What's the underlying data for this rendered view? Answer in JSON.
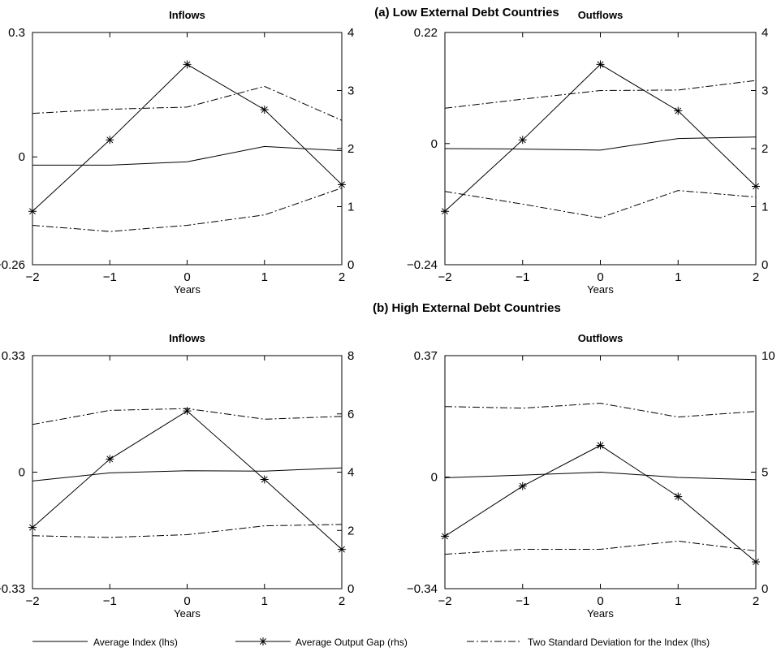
{
  "sections": [
    {
      "title": "(a) Low External Debt Countries"
    },
    {
      "title": "(b) High External Debt Countries"
    }
  ],
  "legend": [
    {
      "key": "index",
      "label": "Average Index (lhs)"
    },
    {
      "key": "gap",
      "label": "Average Output Gap (rhs)"
    },
    {
      "key": "sd",
      "label": "Two Standard Deviation for the Index (lhs)"
    }
  ],
  "chart_data": [
    {
      "type": "line",
      "title": "Inflows",
      "section": "(a) Low External Debt Countries",
      "xlabel": "Years",
      "x": [
        -2,
        -1,
        0,
        1,
        2
      ],
      "xticks": [
        "-2",
        "-1",
        "0",
        "1",
        "2"
      ],
      "xlim": [
        -2,
        2
      ],
      "ylim_left": [
        -0.26,
        0.3
      ],
      "yticks_left": [
        -0.26,
        0,
        0.3
      ],
      "yticklabels_left": [
        "-0.26",
        "0",
        "0.3"
      ],
      "ylim_right": [
        0,
        4
      ],
      "yticks_right": [
        0,
        1,
        2,
        3,
        4
      ],
      "yticklabels_right": [
        "0",
        "1",
        "2",
        "3",
        "4"
      ],
      "series": [
        {
          "key": "index",
          "axis": "left",
          "values": [
            -0.02,
            -0.02,
            -0.012,
            0.025,
            0.015
          ]
        },
        {
          "key": "sd_upper",
          "axis": "left",
          "values": [
            0.105,
            0.115,
            0.12,
            0.17,
            0.088
          ]
        },
        {
          "key": "sd_lower",
          "axis": "left",
          "values": [
            -0.165,
            -0.18,
            -0.165,
            -0.14,
            -0.075
          ]
        },
        {
          "key": "gap",
          "axis": "right",
          "values": [
            0.92,
            2.15,
            3.45,
            2.67,
            1.38
          ]
        }
      ]
    },
    {
      "type": "line",
      "title": "Outflows",
      "section": "(a) Low External Debt Countries",
      "xlabel": "Years",
      "x": [
        -2,
        -1,
        0,
        1,
        2
      ],
      "xticks": [
        "-2",
        "-1",
        "0",
        "1",
        "2"
      ],
      "xlim": [
        -2,
        2
      ],
      "ylim_left": [
        -0.24,
        0.22
      ],
      "yticks_left": [
        -0.24,
        0,
        0.22
      ],
      "yticklabels_left": [
        "-0.24",
        "0",
        "0.22"
      ],
      "ylim_right": [
        0,
        4
      ],
      "yticks_right": [
        0,
        1,
        2,
        3,
        4
      ],
      "yticklabels_right": [
        "0",
        "1",
        "2",
        "3",
        "4"
      ],
      "series": [
        {
          "key": "index",
          "axis": "left",
          "values": [
            -0.01,
            -0.011,
            -0.013,
            0.01,
            0.013
          ]
        },
        {
          "key": "sd_upper",
          "axis": "left",
          "values": [
            0.07,
            0.088,
            0.105,
            0.106,
            0.125
          ]
        },
        {
          "key": "sd_lower",
          "axis": "left",
          "values": [
            -0.095,
            -0.12,
            -0.147,
            -0.093,
            -0.106
          ]
        },
        {
          "key": "gap",
          "axis": "right",
          "values": [
            0.92,
            2.15,
            3.45,
            2.65,
            1.35
          ]
        }
      ]
    },
    {
      "type": "line",
      "title": "Inflows",
      "section": "(b) High External Debt Countries",
      "xlabel": "Years",
      "x": [
        -2,
        -1,
        0,
        1,
        2
      ],
      "xticks": [
        "-2",
        "-1",
        "0",
        "1",
        "2"
      ],
      "xlim": [
        -2,
        2
      ],
      "ylim_left": [
        -0.33,
        0.33
      ],
      "yticks_left": [
        -0.33,
        0,
        0.33
      ],
      "yticklabels_left": [
        "-0.33",
        "0",
        "0.33"
      ],
      "ylim_right": [
        0,
        8
      ],
      "yticks_right": [
        0,
        2,
        4,
        6,
        8
      ],
      "yticklabels_right": [
        "0",
        "2",
        "4",
        "6",
        "8"
      ],
      "series": [
        {
          "key": "index",
          "axis": "left",
          "values": [
            -0.025,
            -0.002,
            0.004,
            0.003,
            0.012
          ]
        },
        {
          "key": "sd_upper",
          "axis": "left",
          "values": [
            0.135,
            0.175,
            0.18,
            0.15,
            0.158
          ]
        },
        {
          "key": "sd_lower",
          "axis": "left",
          "values": [
            -0.18,
            -0.185,
            -0.177,
            -0.152,
            -0.148
          ]
        },
        {
          "key": "gap",
          "axis": "right",
          "values": [
            2.1,
            4.45,
            6.1,
            3.75,
            1.35
          ]
        }
      ]
    },
    {
      "type": "line",
      "title": "Outflows",
      "section": "(b) High External Debt Countries",
      "xlabel": "Years",
      "x": [
        -2,
        -1,
        0,
        1,
        2
      ],
      "xticks": [
        "-2",
        "-1",
        "0",
        "1",
        "2"
      ],
      "xlim": [
        -2,
        2
      ],
      "ylim_left": [
        -0.34,
        0.37
      ],
      "yticks_left": [
        -0.34,
        0,
        0.37
      ],
      "yticklabels_left": [
        "-0.34",
        "0",
        "0.37"
      ],
      "ylim_right": [
        0,
        10
      ],
      "yticks_right": [
        0,
        5,
        10
      ],
      "yticklabels_right": [
        "0",
        "5",
        "10"
      ],
      "series": [
        {
          "key": "index",
          "axis": "left",
          "values": [
            -0.002,
            0.006,
            0.015,
            -0.001,
            -0.008
          ]
        },
        {
          "key": "sd_upper",
          "axis": "left",
          "values": [
            0.215,
            0.21,
            0.225,
            0.183,
            0.2
          ]
        },
        {
          "key": "sd_lower",
          "axis": "left",
          "values": [
            -0.235,
            -0.22,
            -0.22,
            -0.195,
            -0.225
          ]
        },
        {
          "key": "gap",
          "axis": "right",
          "values": [
            2.25,
            4.4,
            6.15,
            3.95,
            1.15
          ]
        }
      ]
    }
  ]
}
